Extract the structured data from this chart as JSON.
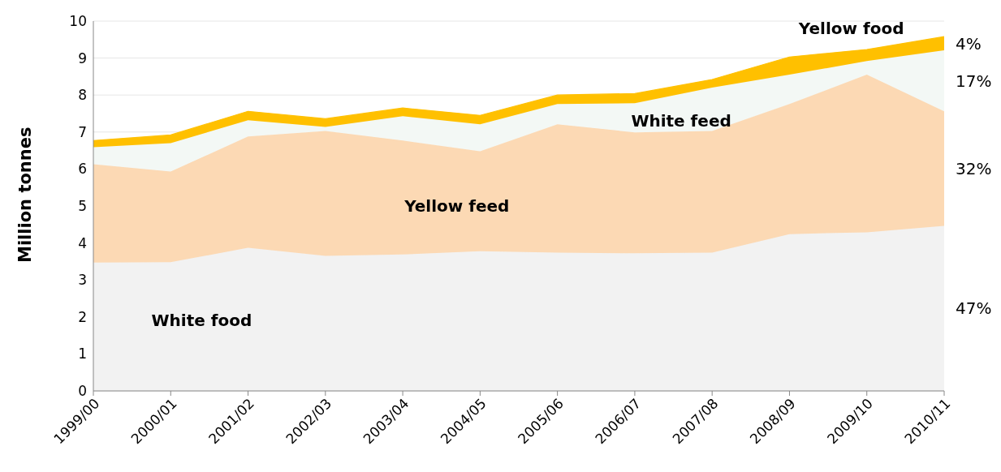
{
  "chart_data": {
    "type": "area",
    "stacked": true,
    "ylabel": "Million tonnes",
    "categories": [
      "1999/00",
      "2000/01",
      "2001/02",
      "2002/03",
      "2003/04",
      "2004/05",
      "2005/06",
      "2006/07",
      "2007/08",
      "2008/09",
      "2009/10",
      "2010/11"
    ],
    "series": [
      {
        "name": "White food",
        "color": "#f2f2f2",
        "values": [
          3.47,
          3.48,
          3.87,
          3.65,
          3.69,
          3.78,
          3.74,
          3.72,
          3.74,
          4.24,
          4.29,
          4.46
        ]
      },
      {
        "name": "Yellow feed",
        "color": "#fcd9b4",
        "values": [
          2.66,
          2.45,
          3.01,
          3.38,
          3.08,
          2.7,
          3.47,
          3.27,
          3.29,
          3.52,
          4.26,
          3.1
        ]
      },
      {
        "name": "White feed",
        "color": "#f3f8f5",
        "values": [
          0.46,
          0.77,
          0.44,
          0.11,
          0.66,
          0.73,
          0.55,
          0.79,
          1.17,
          0.79,
          0.37,
          1.65
        ]
      },
      {
        "name": "Yellow food",
        "color": "#ffc000",
        "values": [
          0.18,
          0.22,
          0.24,
          0.22,
          0.22,
          0.24,
          0.24,
          0.26,
          0.22,
          0.48,
          0.31,
          0.37
        ]
      }
    ],
    "ylim": [
      0,
      10
    ],
    "yticks": [
      0,
      1,
      2,
      3,
      4,
      5,
      6,
      7,
      8,
      9,
      10
    ],
    "grid": "y",
    "legend": false,
    "annotations": [
      "4%",
      "17%",
      "32%",
      "47%"
    ]
  }
}
